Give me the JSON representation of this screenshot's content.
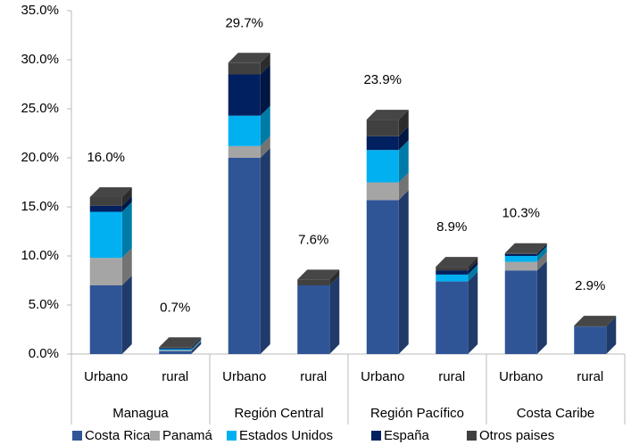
{
  "chart_data": {
    "type": "bar3d_stacked",
    "categories": [
      "Urbano",
      "rural",
      "Urbano",
      "rural",
      "Urbano",
      "rural",
      "Urbano",
      "rural"
    ],
    "groups": [
      "Managua",
      "Región Central",
      "Región Pacífico",
      "Costa Caribe"
    ],
    "series": [
      {
        "name": "Costa Rica",
        "color": "#2f5597",
        "values": [
          7.0,
          0.3,
          20.0,
          7.0,
          15.7,
          7.4,
          8.5,
          2.8
        ]
      },
      {
        "name": "Panamá",
        "color": "#a5a5a5",
        "values": [
          2.8,
          0.1,
          1.2,
          0,
          1.8,
          0,
          0.9,
          0
        ]
      },
      {
        "name": "Estados Unidos",
        "color": "#00b0f0",
        "values": [
          4.7,
          0.1,
          3.1,
          0,
          3.3,
          0.7,
          0.6,
          0
        ]
      },
      {
        "name": "España",
        "color": "#002060",
        "values": [
          0.6,
          0.1,
          4.2,
          0,
          1.4,
          0.4,
          0.2,
          0
        ]
      },
      {
        "name": "Otros paises",
        "color": "#404040",
        "values": [
          0.9,
          0.1,
          1.2,
          0.6,
          1.7,
          0.4,
          0.1,
          0.1
        ]
      }
    ],
    "totals": [
      16.0,
      0.7,
      29.7,
      7.6,
      23.9,
      8.9,
      10.3,
      2.9
    ],
    "total_labels": [
      "16.0%",
      "0.7%",
      "29.7%",
      "7.6%",
      "23.9%",
      "8.9%",
      "10.3%",
      "2.9%"
    ],
    "ylim": [
      0,
      35
    ],
    "yticks": [
      {
        "value": 0,
        "label": "0.0%"
      },
      {
        "value": 5,
        "label": "5.0%"
      },
      {
        "value": 10,
        "label": "10.0%"
      },
      {
        "value": 15,
        "label": "15.0%"
      },
      {
        "value": 20,
        "label": "20.0%"
      },
      {
        "value": 25,
        "label": "25.0%"
      },
      {
        "value": 30,
        "label": "30.0%"
      },
      {
        "value": 35,
        "label": "35.0%"
      }
    ]
  }
}
